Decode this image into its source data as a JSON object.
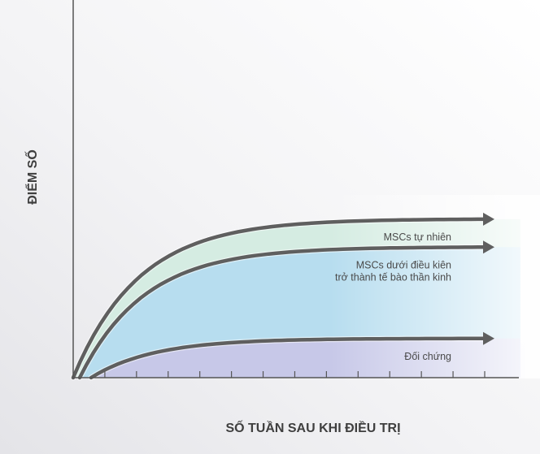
{
  "chart_data": {
    "type": "area",
    "xlabel": "SỐ TUẦN SAU KHI ĐIỀU TRỊ",
    "ylabel": "ĐIỂM SỐ",
    "x_ticks_count": 13,
    "series": [
      {
        "name": "MSCs tự nhiên",
        "lines": [
          "MSCs tự nhiên"
        ],
        "color": "#d5ece2",
        "plateau": 0.85
      },
      {
        "name": "MSCs dưới điều kiên trở thành tế bào thần kinh",
        "lines": [
          "MSCs  dưới điều kiên",
          "trở thành tế bào thần kinh"
        ],
        "color": "#b7ddef",
        "plateau": 0.7
      },
      {
        "name": "Đối chứng",
        "lines": [
          "Đối chứng"
        ],
        "color": "#c7c8e8",
        "plateau": 0.21
      }
    ],
    "colors": {
      "axis": "#555555",
      "curve": "#5f5f5f",
      "background_top": "#ffffff",
      "background_side": "#e9e9ec"
    }
  }
}
